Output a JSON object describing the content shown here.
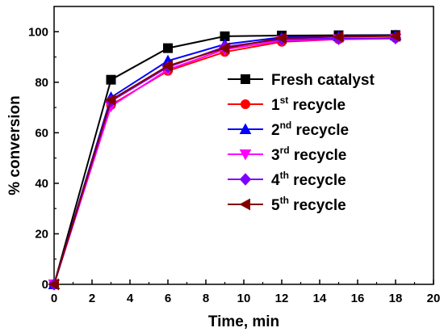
{
  "chart_data": {
    "type": "line",
    "xlabel": "Time, min",
    "ylabel": "% conversion",
    "xlim": [
      0,
      20
    ],
    "ylim": [
      0,
      110
    ],
    "x_ticks": [
      0,
      2,
      4,
      6,
      8,
      10,
      12,
      14,
      16,
      18,
      20
    ],
    "y_ticks": [
      0,
      20,
      40,
      60,
      80,
      100
    ],
    "grid": false,
    "legend_position": "center-right",
    "series": [
      {
        "name": "Fresh catalyst",
        "base": "Fresh catalyst",
        "sup": "",
        "suffix": "",
        "color": "#000000",
        "marker": "square",
        "x": [
          0,
          3,
          6,
          9,
          12,
          15,
          18
        ],
        "y": [
          0,
          81,
          93.5,
          98.2,
          98.5,
          98.6,
          98.7
        ]
      },
      {
        "name": "1st recycle",
        "base": "1",
        "sup": "st",
        "suffix": " recycle",
        "color": "#ff0000",
        "marker": "circle",
        "x": [
          0,
          3,
          6,
          9,
          12,
          15,
          18
        ],
        "y": [
          0,
          71,
          84.5,
          92,
          96,
          97,
          97.5
        ]
      },
      {
        "name": "2nd recycle",
        "base": "2",
        "sup": "nd",
        "suffix": " recycle",
        "color": "#0000ff",
        "marker": "triangle-up",
        "x": [
          0,
          3,
          6,
          9,
          12,
          15,
          18
        ],
        "y": [
          0,
          74,
          88.5,
          95,
          97.8,
          98.2,
          98.5
        ]
      },
      {
        "name": "3rd recycle",
        "base": "3",
        "sup": "rd",
        "suffix": " recycle",
        "color": "#ff00ff",
        "marker": "triangle-down",
        "x": [
          0,
          3,
          6,
          9,
          12,
          15,
          18
        ],
        "y": [
          0,
          70.5,
          85,
          93,
          96.5,
          97,
          97.3
        ]
      },
      {
        "name": "4th recycle",
        "base": "4",
        "sup": "th",
        "suffix": " recycle",
        "color": "#8000ff",
        "marker": "diamond",
        "x": [
          0,
          3,
          6,
          9,
          12,
          15,
          18
        ],
        "y": [
          0,
          72.5,
          86,
          94,
          97,
          97.3,
          97.5
        ]
      },
      {
        "name": "5th recycle",
        "base": "5",
        "sup": "th",
        "suffix": " recycle",
        "color": "#800000",
        "marker": "triangle-left",
        "x": [
          0,
          3,
          6,
          9,
          12,
          15,
          18
        ],
        "y": [
          0,
          73,
          86.5,
          93.5,
          97.5,
          98,
          98.3
        ]
      }
    ]
  }
}
